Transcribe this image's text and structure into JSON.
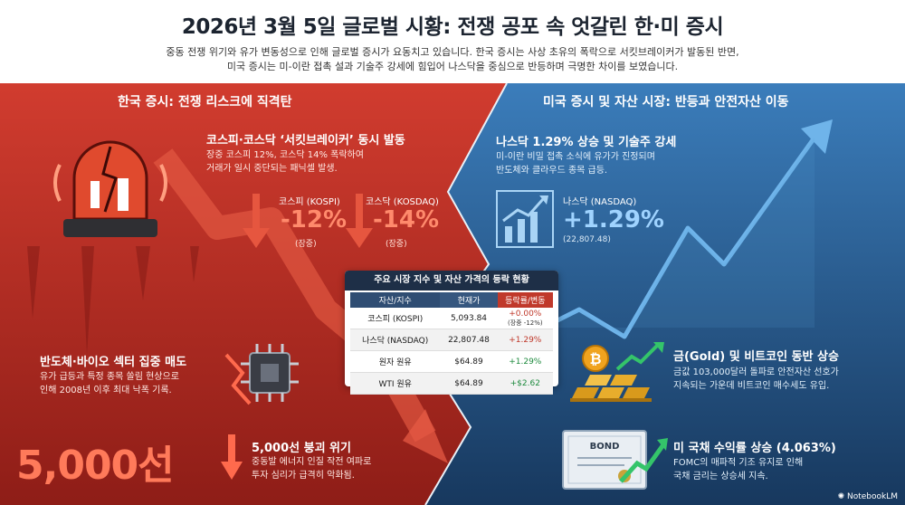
{
  "title": "2026년 3월 5일 글로벌 시황: 전쟁 공포 속 엇갈린 한·미 증시",
  "subtitle_line1": "중동 전쟁 위기와 유가 변동성으로 인해 글로벌 증시가 요동치고 있습니다. 한국 증시는 사상 초유의 폭락으로 서킷브레이커가 발동된 반면,",
  "subtitle_line2": "미국 증시는 미-이란 접촉 설과 기술주 강세에 힘입어 나스닥을 중심으로 반등하며 극명한 차이를 보였습니다.",
  "korea": {
    "section_title": "한국 증시: 전쟁 리스크에 직격탄",
    "circuit_title": "코스피·코스닥 ‘서킷브레이커’ 동시 발동",
    "circuit_desc1": "장중 코스피 12%, 코스닥 14% 폭락하여",
    "circuit_desc2": "거래가 일시 중단되는 패닉셀 발생.",
    "kospi_label": "코스피 (KOSPI)",
    "kospi_value": "-12%",
    "kospi_note": "(장중)",
    "kosdaq_label": "코스닥 (KOSDAQ)",
    "kosdaq_value": "-14%",
    "kosdaq_note": "(장중)",
    "semi_title": "반도체·바이오 섹터 집중 매도",
    "semi_desc1": "유가 급등과 특정 종목 쏠림 현상으로",
    "semi_desc2": "인해 2008년 이후 최대 낙폭 기록.",
    "big_5000": "5,000선",
    "crash_title": "5,000선 붕괴 위기",
    "crash_desc1": "중동발 에너지 인질 작전 여파로",
    "crash_desc2": "투자 심리가 급격히 악화됨."
  },
  "us": {
    "section_title": "미국 증시 및 자산 시장: 반등과 안전자산 이동",
    "nasdaq_title": "나스닥 1.29% 상승 및 기술주 강세",
    "nasdaq_desc1": "미-이란 비밀 접촉 소식에 유가가 진정되며",
    "nasdaq_desc2": "반도체와 클라우드 종목 급등.",
    "nasdaq_label": "나스닥 (NASDAQ)",
    "nasdaq_value": "+1.29%",
    "nasdaq_note": "(22,807.48)",
    "gold_title": "금(Gold) 및 비트코인 동반 상승",
    "gold_desc1": "금값 103,000달러 돌파로 안전자산 선호가",
    "gold_desc2": "지속되는 가운데 비트코인 매수세도 유입.",
    "bond_label": "BOND",
    "bond_title": "미 국채 수익률 상승 (4.063%)",
    "bond_desc1": "FOMC의 매파적 기조 유지로 인해",
    "bond_desc2": "국채 금리는 상승세 지속."
  },
  "table": {
    "title": "주요 시장 지수 및 자산 가격의 등락 현황",
    "headers": [
      "자산/지수",
      "현재가",
      "등락률/변동"
    ],
    "rows": [
      {
        "asset": "코스피 (KOSPI)",
        "price": "5,093.84",
        "change": "+0.00%",
        "change_note": "(장중 -12%)"
      },
      {
        "asset": "나스닥 (NASDAQ)",
        "price": "22,807.48",
        "change": "+1.29%"
      },
      {
        "asset": "원자 원유",
        "price": "$64.89",
        "change": "+1.29%"
      },
      {
        "asset": "WTI 원유",
        "price": "$64.89",
        "change": "+$2.62"
      }
    ]
  },
  "footer": "NotebookLM",
  "colors": {
    "red": "#c9342a",
    "blue": "#2f6aa0",
    "navy": "#1e2f47"
  }
}
